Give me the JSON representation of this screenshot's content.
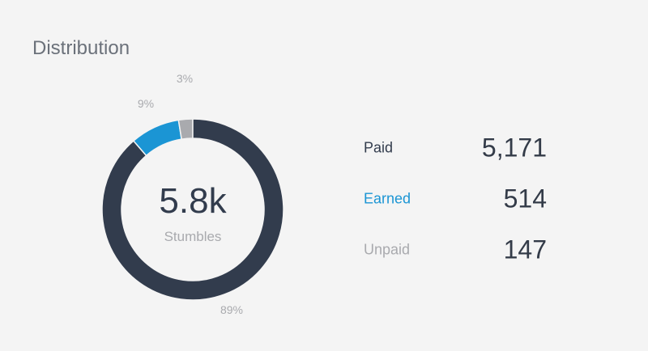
{
  "header": {
    "title": "Distribution"
  },
  "chart_data": {
    "type": "pie",
    "style": "donut",
    "center_value": "5.8k",
    "center_label": "Stumbles",
    "slices": [
      {
        "label": "Paid",
        "value": 5171,
        "percent_label": "89%",
        "color": "#323c4d"
      },
      {
        "label": "Earned",
        "value": 514,
        "percent_label": "9%",
        "color": "#1b95d4"
      },
      {
        "label": "Unpaid",
        "value": 147,
        "percent_label": "3%",
        "color": "#a9aaae"
      }
    ]
  },
  "legend": {
    "items": [
      {
        "label": "Paid",
        "value": "5,171",
        "label_color": "#323c4d"
      },
      {
        "label": "Earned",
        "value": "514",
        "label_color": "#1b95d4"
      },
      {
        "label": "Unpaid",
        "value": "147",
        "label_color": "#a9aaae"
      }
    ]
  }
}
